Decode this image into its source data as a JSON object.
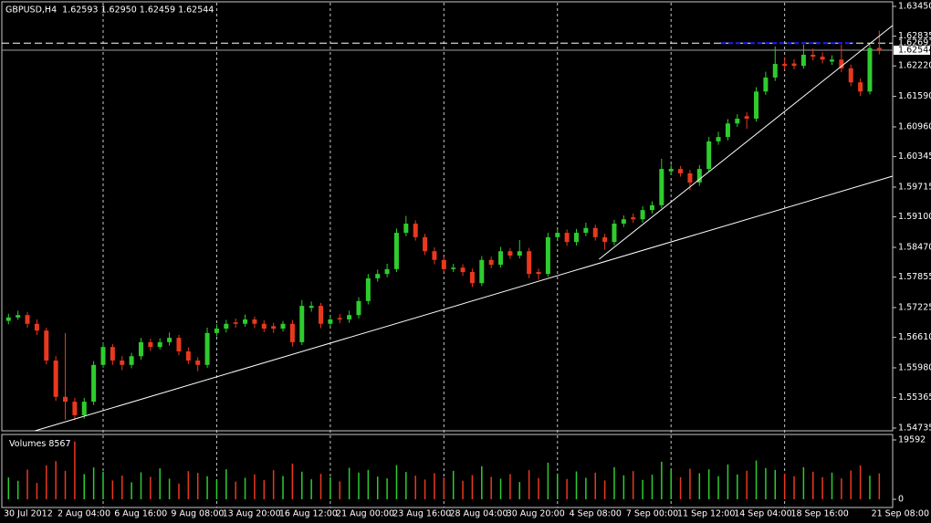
{
  "chart_data": {
    "type": "candlestick",
    "title": "GBPUSD,H4  1.62593 1.62950 1.62459 1.62544",
    "categories": [
      "30 Jul 2012",
      null,
      null,
      null,
      null,
      null,
      null,
      null,
      null,
      null,
      "2 Aug 04:00",
      null,
      null,
      null,
      null,
      null,
      "6 Aug 16:00",
      null,
      null,
      null,
      null,
      null,
      "9 Aug 08:00",
      null,
      null,
      null,
      null,
      null,
      "13 Aug 20:00",
      null,
      null,
      null,
      null,
      null,
      "16 Aug 12:00",
      null,
      null,
      null,
      null,
      null,
      "21 Aug 00:00",
      null,
      null,
      null,
      null,
      null,
      "23 Aug 16:00",
      null,
      null,
      null,
      null,
      null,
      "28 Aug 04:00",
      null,
      null,
      null,
      null,
      null,
      "30 Aug 20:00",
      null,
      null,
      null,
      null,
      null,
      "4 Sep 08:00",
      null,
      null,
      null,
      null,
      null,
      "7 Sep 00:00",
      null,
      null,
      null,
      null,
      null,
      "11 Sep 12:00",
      null,
      null,
      null,
      null,
      null,
      "14 Sep 04:00",
      null,
      null,
      null,
      null,
      null,
      "18 Sep 16:00",
      null,
      null,
      null,
      "21 Sep 08:00"
    ],
    "open": [
      1.5695,
      1.5702,
      1.5707,
      1.5689,
      1.5675,
      1.5613,
      1.5538,
      1.5528,
      1.55,
      1.5528,
      1.5604,
      1.5641,
      1.5613,
      1.5604,
      1.5622,
      1.5651,
      1.5641,
      1.5651,
      1.566,
      1.5632,
      1.5613,
      1.5604,
      1.567,
      1.5679,
      1.5692,
      1.5689,
      1.5698,
      1.5689,
      1.5684,
      1.5679,
      1.5689,
      1.5651,
      1.5722,
      1.5726,
      1.5689,
      1.5701,
      1.5698,
      1.5707,
      1.5736,
      1.5783,
      1.5792,
      1.5802,
      1.5877,
      1.5896,
      1.5868,
      1.5839,
      1.5821,
      1.5802,
      1.5805,
      1.5796,
      1.5773,
      1.5821,
      1.5811,
      1.5839,
      1.583,
      1.5839,
      1.5796,
      1.5792,
      1.5868,
      1.5877,
      1.5858,
      1.5877,
      1.5887,
      1.5868,
      1.5858,
      1.5896,
      1.5909,
      1.5905,
      1.5924,
      1.5934,
      1.6004,
      1.6009,
      1.6,
      1.5981,
      1.6009,
      1.6066,
      1.6075,
      1.6103,
      1.6118,
      1.6113,
      1.6169,
      1.6198,
      1.6226,
      1.6227,
      1.6222,
      1.6245,
      1.6241,
      1.6231,
      1.6235,
      1.6217,
      1.6188,
      1.6169,
      1.62593
    ],
    "high": [
      1.571,
      1.5716,
      1.5713,
      1.5698,
      1.5681,
      1.5622,
      1.567,
      1.5536,
      1.5536,
      1.5612,
      1.565,
      1.5647,
      1.5622,
      1.5629,
      1.566,
      1.5658,
      1.5659,
      1.5671,
      1.5666,
      1.564,
      1.562,
      1.5681,
      1.5688,
      1.5697,
      1.57,
      1.5708,
      1.5704,
      1.5696,
      1.5691,
      1.5695,
      1.5697,
      1.5738,
      1.5735,
      1.5732,
      1.5706,
      1.5709,
      1.5716,
      1.5744,
      1.5792,
      1.5801,
      1.5813,
      1.5886,
      1.5912,
      1.5903,
      1.5875,
      1.5847,
      1.5828,
      1.5813,
      1.5812,
      1.5803,
      1.5829,
      1.5828,
      1.5848,
      1.5845,
      1.5862,
      1.5846,
      1.5803,
      1.5877,
      1.5886,
      1.5884,
      1.5885,
      1.5898,
      1.5894,
      1.5875,
      1.5904,
      1.5913,
      1.5917,
      1.5932,
      1.5942,
      1.603,
      1.6018,
      1.6015,
      1.6007,
      1.6017,
      1.6075,
      1.6086,
      1.6112,
      1.6122,
      1.6126,
      1.6178,
      1.621,
      1.6262,
      1.624,
      1.6236,
      1.6266,
      1.6258,
      1.625,
      1.6244,
      1.6266,
      1.6225,
      1.6196,
      1.6266,
      1.6295
    ],
    "low": [
      1.5688,
      1.5697,
      1.5681,
      1.5666,
      1.5605,
      1.553,
      1.5491,
      1.549,
      1.5493,
      1.5521,
      1.5598,
      1.5604,
      1.5593,
      1.5597,
      1.5615,
      1.5633,
      1.5636,
      1.5644,
      1.5624,
      1.5606,
      1.5591,
      1.5598,
      1.5663,
      1.5671,
      1.5681,
      1.5683,
      1.568,
      1.5672,
      1.567,
      1.5673,
      1.5642,
      1.5645,
      1.5714,
      1.568,
      1.5683,
      1.569,
      1.5691,
      1.57,
      1.5729,
      1.5776,
      1.5785,
      1.5796,
      1.587,
      1.5861,
      1.5831,
      1.5812,
      1.5795,
      1.5796,
      1.5788,
      1.5765,
      1.5767,
      1.5804,
      1.5805,
      1.5823,
      1.5824,
      1.5783,
      1.578,
      1.5786,
      1.586,
      1.585,
      1.5851,
      1.587,
      1.5861,
      1.5842,
      1.5851,
      1.5889,
      1.5898,
      1.5898,
      1.5917,
      1.5928,
      1.5996,
      1.5993,
      1.5965,
      1.5974,
      1.6003,
      1.6059,
      1.6068,
      1.6096,
      1.6092,
      1.6107,
      1.6162,
      1.6191,
      1.6214,
      1.6215,
      1.6216,
      1.6233,
      1.6227,
      1.6224,
      1.6209,
      1.618,
      1.616,
      1.6163,
      1.62459
    ],
    "close": [
      1.5702,
      1.5707,
      1.5689,
      1.5675,
      1.5613,
      1.5538,
      1.5528,
      1.55,
      1.5528,
      1.5604,
      1.5641,
      1.5613,
      1.5604,
      1.5622,
      1.5651,
      1.5641,
      1.5651,
      1.566,
      1.5632,
      1.5613,
      1.5604,
      1.567,
      1.5679,
      1.5689,
      1.5689,
      1.5698,
      1.5689,
      1.5679,
      1.5679,
      1.5689,
      1.5651,
      1.5726,
      1.5726,
      1.5689,
      1.5698,
      1.5698,
      1.5707,
      1.5736,
      1.5783,
      1.5792,
      1.5802,
      1.5877,
      1.5896,
      1.5868,
      1.5839,
      1.5821,
      1.5802,
      1.5805,
      1.5796,
      1.5773,
      1.5821,
      1.5811,
      1.5839,
      1.583,
      1.5839,
      1.5792,
      1.5792,
      1.5868,
      1.5877,
      1.5858,
      1.5877,
      1.5887,
      1.5868,
      1.5858,
      1.5896,
      1.5905,
      1.5905,
      1.5924,
      1.5934,
      1.6009,
      1.6009,
      1.6,
      1.5981,
      1.6009,
      1.6066,
      1.6075,
      1.6103,
      1.6113,
      1.6113,
      1.6169,
      1.6198,
      1.6226,
      1.6222,
      1.6222,
      1.6245,
      1.6241,
      1.6235,
      1.6235,
      1.6217,
      1.6188,
      1.6169,
      1.6259,
      1.62544
    ],
    "up_color": "#2ecc2e",
    "down_color": "#e8391e",
    "ylim": [
      1.54678,
      1.63582
    ],
    "yticks": [
      {
        "value": 1.6345,
        "label": "1.63450"
      },
      {
        "value": 1.62835,
        "label": "1.62835"
      },
      {
        "value": 1.6222,
        "label": "1.62220"
      },
      {
        "value": 1.6159,
        "label": "1.61590"
      },
      {
        "value": 1.6096,
        "label": "1.60960"
      },
      {
        "value": 1.60345,
        "label": "1.60345"
      },
      {
        "value": 1.59715,
        "label": "1.59715"
      },
      {
        "value": 1.591,
        "label": "1.59100"
      },
      {
        "value": 1.5847,
        "label": "1.58470"
      },
      {
        "value": 1.57855,
        "label": "1.57855"
      },
      {
        "value": 1.57225,
        "label": "1.57225"
      },
      {
        "value": 1.5661,
        "label": "1.56610"
      },
      {
        "value": 1.5598,
        "label": "1.55980"
      },
      {
        "value": 1.55365,
        "label": "1.55365"
      },
      {
        "value": 1.54735,
        "label": "1.54735"
      }
    ],
    "levels": [
      {
        "value": 1.62691,
        "label": "1.62691",
        "style": "dashed"
      },
      {
        "value": 1.62544,
        "label": "1.62544",
        "style": "bid"
      }
    ],
    "trendlines": [
      {
        "x": [
          2.8,
          93.4
        ],
        "y": [
          1.54678,
          1.59941
        ],
        "color": "#ffffff"
      },
      {
        "x": [
          62.4,
          93.4
        ],
        "y": [
          1.58224,
          1.63054
        ],
        "color": "#ffffff"
      },
      {
        "x": [
          75.3,
          89.3
        ],
        "y": [
          1.6269,
          1.6269
        ],
        "color": "#1a1aff",
        "dash": true
      }
    ],
    "xgrid": true,
    "volume": {
      "label": "Volumes",
      "values": [
        7200,
        6100,
        9800,
        5400,
        11200,
        12600,
        9400,
        19100,
        8300,
        10500,
        9100,
        6200,
        7800,
        5600,
        8900,
        7400,
        10200,
        6800,
        5200,
        9300,
        8700,
        7600,
        6400,
        9900,
        5800,
        7100,
        8200,
        6300,
        9600,
        7700,
        11800,
        9100,
        6600,
        8400,
        7300,
        5900,
        10400,
        8800,
        9700,
        7500,
        6900,
        11300,
        9000,
        7800,
        6500,
        8600,
        7200,
        9400,
        6100,
        8000,
        10900,
        7400,
        6800,
        8300,
        5700,
        9600,
        7000,
        12100,
        8500,
        6700,
        9200,
        7100,
        8800,
        6200,
        10600,
        7900,
        9300,
        6400,
        8100,
        12400,
        9800,
        7300,
        10100,
        8600,
        9900,
        7600,
        11500,
        8200,
        9400,
        12800,
        10300,
        9700,
        8400,
        7600,
        10600,
        9100,
        7300,
        8800,
        6900,
        9500,
        11200,
        7800,
        8567
      ],
      "ylim": [
        0,
        19592
      ],
      "yticks": [
        19592,
        0
      ]
    }
  }
}
